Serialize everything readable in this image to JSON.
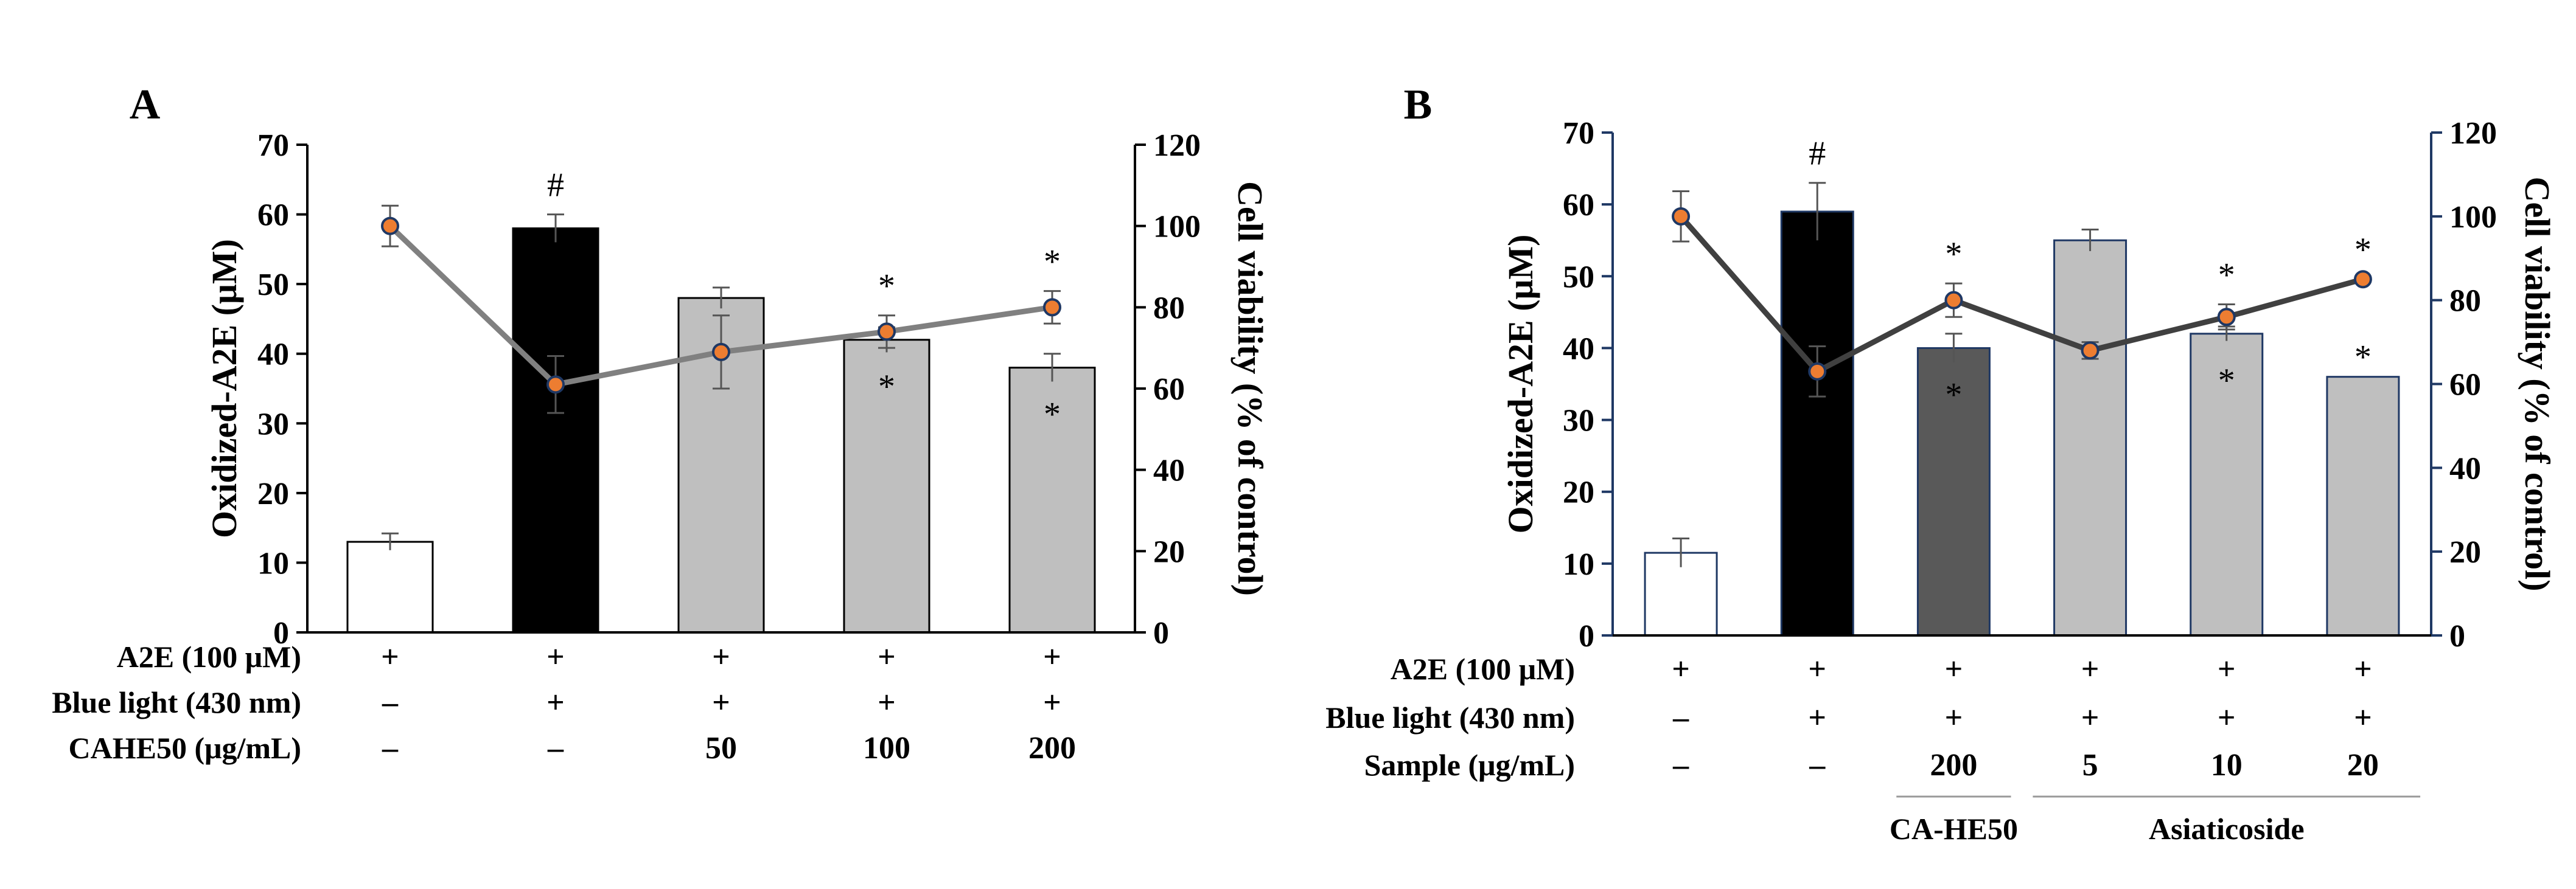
{
  "chart_data": [
    {
      "type": "bar",
      "panel": "A",
      "ylabel": "Oxidized-A2E (μM)",
      "ylim": [
        0,
        70
      ],
      "y_ticks": [
        "0",
        "10",
        "20",
        "30",
        "40",
        "50",
        "60",
        "70"
      ],
      "y2label": "Cell viability (% of control)",
      "y2lim": [
        0,
        120
      ],
      "y2_ticks": [
        "0",
        "20",
        "40",
        "60",
        "80",
        "100",
        "120"
      ],
      "groups": 5,
      "bar_fills": [
        "#ffffff",
        "#000000",
        "#bfbfbf",
        "#bfbfbf",
        "#bfbfbf"
      ],
      "bar_stroke": "#000000",
      "line_color": "#808080",
      "series": [
        {
          "name": "Oxidized-A2E",
          "axis": "left",
          "values": [
            13,
            58,
            48,
            42,
            38
          ],
          "errors": [
            1.2,
            2,
            1.5,
            1.8,
            2
          ]
        },
        {
          "name": "Cell viability",
          "axis": "right",
          "values": [
            100,
            61,
            69,
            74,
            80
          ],
          "errors": [
            5,
            7,
            9,
            4,
            4
          ]
        }
      ],
      "bar_marks": [
        "",
        "#",
        "",
        "*",
        "*"
      ],
      "line_marks": [
        "",
        "#",
        "",
        "*",
        "*"
      ],
      "rows": [
        {
          "label": "A2E (100 μM)",
          "values": [
            "+",
            "+",
            "+",
            "+",
            "+"
          ]
        },
        {
          "label": "Blue light (430 nm)",
          "values": [
            "–",
            "+",
            "+",
            "+",
            "+"
          ]
        },
        {
          "label": "CAHE50 (μg/mL)",
          "values": [
            "–",
            "–",
            "50",
            "100",
            "200"
          ]
        }
      ],
      "group_labels": []
    },
    {
      "type": "bar",
      "panel": "B",
      "ylabel": "Oxidized-A2E (μM)",
      "ylim": [
        0,
        70
      ],
      "y_ticks": [
        "0",
        "10",
        "20",
        "30",
        "40",
        "50",
        "60",
        "70"
      ],
      "y2label": "Cell viability (% of control)",
      "y2lim": [
        0,
        120
      ],
      "y2_ticks": [
        "0",
        "20",
        "40",
        "60",
        "80",
        "100",
        "120"
      ],
      "groups": 6,
      "bar_fills": [
        "#ffffff",
        "#000000",
        "#595959",
        "#bfbfbf",
        "#bfbfbf",
        "#bfbfbf"
      ],
      "bar_stroke": "#1f3864",
      "line_color": "#404040",
      "series": [
        {
          "name": "Oxidized-A2E",
          "axis": "left",
          "values": [
            11.5,
            59,
            40,
            55,
            42,
            36
          ],
          "errors": [
            2,
            4,
            2,
            1.5,
            1,
            0
          ]
        },
        {
          "name": "Cell viability",
          "axis": "right",
          "values": [
            100,
            63,
            80,
            68,
            76,
            85
          ],
          "errors": [
            6,
            6,
            4,
            2,
            3,
            0
          ]
        }
      ],
      "bar_marks": [
        "",
        "#",
        "*",
        "",
        "*",
        "*"
      ],
      "line_marks": [
        "",
        "#",
        "*",
        "",
        "*",
        "*"
      ],
      "rows": [
        {
          "label": "A2E (100 μM)",
          "values": [
            "+",
            "+",
            "+",
            "+",
            "+",
            "+"
          ]
        },
        {
          "label": "Blue light (430 nm)",
          "values": [
            "–",
            "+",
            "+",
            "+",
            "+",
            "+"
          ]
        },
        {
          "label": "Sample (μg/mL)",
          "values": [
            "–",
            "–",
            "200",
            "5",
            "10",
            "20"
          ]
        }
      ],
      "group_labels": [
        {
          "label": "CA-HE50",
          "from": 2,
          "to": 2
        },
        {
          "label": "Asiaticoside",
          "from": 3,
          "to": 5
        }
      ]
    }
  ]
}
